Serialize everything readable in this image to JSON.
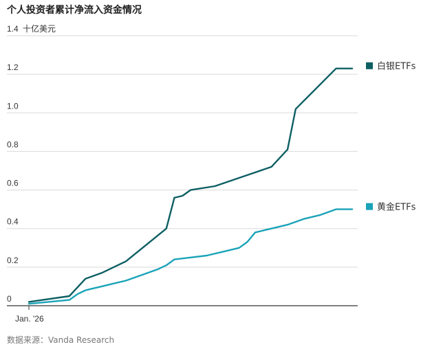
{
  "title": "个人投资者累计净流入资金情况",
  "source": "数据来源：Vanda Research",
  "chart_data": {
    "type": "line",
    "title": "个人投资者累计净流入资金情况",
    "ylabel": "十亿美元",
    "y_ticks": [
      "0",
      "0.2",
      "0.4",
      "0.6",
      "0.8",
      "1.0",
      "1.2",
      "1.4"
    ],
    "ylim": [
      0,
      1.4
    ],
    "x_tick_labels": [
      "Jan. '26"
    ],
    "grid": true,
    "legend_position": "right, at end of each line",
    "series": [
      {
        "name": "白银ETFs",
        "color": "#0d5f63",
        "x": [
          0,
          5,
          7,
          9,
          10,
          12,
          17,
          18,
          19,
          20,
          23,
          30,
          32,
          33,
          38,
          40
        ],
        "y": [
          0.02,
          0.05,
          0.14,
          0.17,
          0.19,
          0.23,
          0.4,
          0.56,
          0.57,
          0.6,
          0.62,
          0.72,
          0.81,
          1.02,
          1.23,
          1.23
        ]
      },
      {
        "name": "黄金ETFs",
        "color": "#1aa3b8",
        "x": [
          0,
          5,
          6,
          7,
          8,
          9,
          10,
          12,
          14,
          16,
          17,
          18,
          20,
          22,
          24,
          26,
          27,
          28,
          30,
          32,
          34,
          36,
          38,
          40
        ],
        "y": [
          0.01,
          0.03,
          0.06,
          0.08,
          0.09,
          0.1,
          0.11,
          0.13,
          0.16,
          0.19,
          0.21,
          0.24,
          0.25,
          0.26,
          0.28,
          0.3,
          0.33,
          0.38,
          0.4,
          0.42,
          0.45,
          0.47,
          0.5,
          0.5
        ]
      }
    ]
  }
}
